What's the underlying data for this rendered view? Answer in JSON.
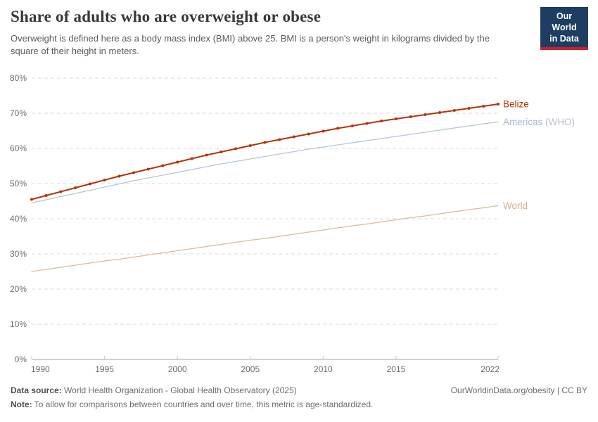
{
  "header": {
    "title": "Share of adults who are overweight or obese",
    "subtitle": "Overweight is defined here as a body mass index (BMI) above 25. BMI is a person's weight in kilograms divided by the square of their height in meters.",
    "logo": {
      "line1": "Our World",
      "line2": "in Data",
      "bg_color": "#1d3d63",
      "stripe_color": "#cb2026"
    }
  },
  "footer": {
    "source_label": "Data source:",
    "source_text": " World Health Organization - Global Health Observatory (2025)",
    "right_text": "OurWorldinData.org/obesity | CC BY",
    "note_label": "Note:",
    "note_text": " To allow for comparisons between countries and over time, this metric is age-standardized."
  },
  "chart_data": {
    "type": "line",
    "title": "Share of adults who are overweight or obese",
    "xlabel": "",
    "ylabel": "",
    "ylim": [
      0,
      80
    ],
    "y_suffix": "%",
    "yticks": [
      0,
      10,
      20,
      30,
      40,
      50,
      60,
      70,
      80
    ],
    "xticks": [
      1990,
      1995,
      2000,
      2005,
      2010,
      2015,
      2022
    ],
    "grid": true,
    "legend_position": "line-end-labels",
    "x": [
      1990,
      1991,
      1992,
      1993,
      1994,
      1995,
      1996,
      1997,
      1998,
      1999,
      2000,
      2001,
      2002,
      2003,
      2004,
      2005,
      2006,
      2007,
      2008,
      2009,
      2010,
      2011,
      2012,
      2013,
      2014,
      2015,
      2016,
      2017,
      2018,
      2019,
      2020,
      2021,
      2022
    ],
    "series": [
      {
        "name": "Belize",
        "color": "#b13507",
        "label_color": "#b13507",
        "markers": true,
        "line_width": 2,
        "values": [
          45.5,
          46.6,
          47.7,
          48.8,
          49.9,
          51.0,
          52.1,
          53.1,
          54.1,
          55.1,
          56.1,
          57.1,
          58.1,
          59.0,
          59.9,
          60.8,
          61.7,
          62.5,
          63.3,
          64.1,
          64.9,
          65.7,
          66.4,
          67.1,
          67.8,
          68.4,
          69.0,
          69.6,
          70.2,
          70.8,
          71.4,
          72.0,
          72.6
        ]
      },
      {
        "name": "Americas (WHO)",
        "color": "#b3c5dc",
        "label_color": "#a6b7d2",
        "markers": false,
        "line_width": 1.3,
        "values": [
          44.5,
          45.4,
          46.3,
          47.2,
          48.1,
          49.0,
          49.9,
          50.8,
          51.6,
          52.4,
          53.2,
          54.0,
          54.8,
          55.6,
          56.3,
          57.0,
          57.7,
          58.4,
          59.1,
          59.8,
          60.4,
          61.0,
          61.6,
          62.2,
          62.8,
          63.4,
          64.0,
          64.6,
          65.2,
          65.8,
          66.4,
          67.0,
          67.5
        ]
      },
      {
        "name": "World",
        "color": "#d8bb9b",
        "label_color": "#cfae8c",
        "markers": false,
        "line_width": 1.3,
        "values": [
          25.0,
          25.6,
          26.2,
          26.8,
          27.4,
          28.0,
          28.5,
          29.1,
          29.7,
          30.3,
          30.9,
          31.5,
          32.1,
          32.7,
          33.3,
          33.9,
          34.4,
          35.0,
          35.6,
          36.2,
          36.8,
          37.4,
          38.0,
          38.5,
          39.1,
          39.7,
          40.3,
          40.8,
          41.4,
          42.0,
          42.6,
          43.1,
          43.7
        ]
      }
    ]
  }
}
